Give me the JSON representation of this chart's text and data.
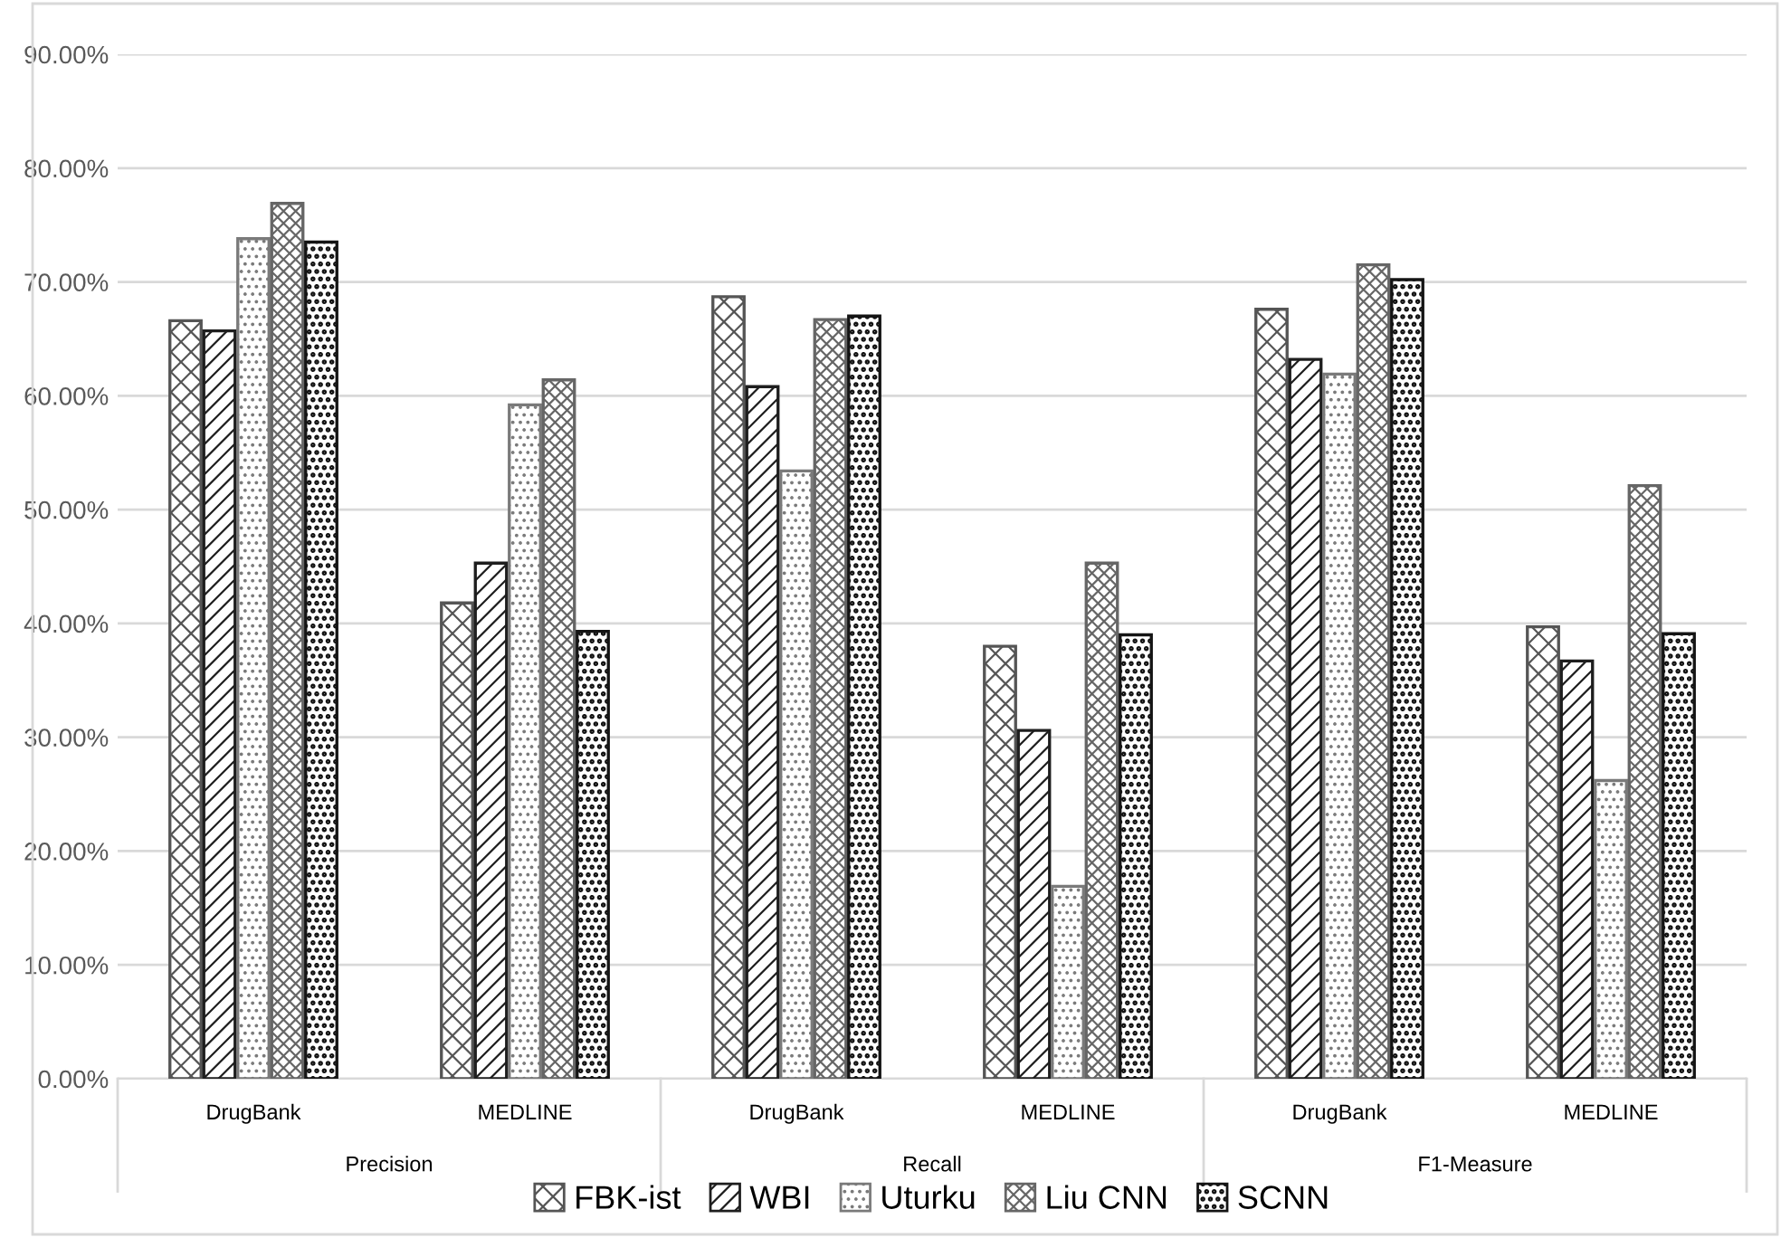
{
  "chart_data": {
    "type": "bar",
    "categories": [
      "DrugBank",
      "MEDLINE",
      "DrugBank",
      "MEDLINE",
      "DrugBank",
      "MEDLINE"
    ],
    "annotations": [
      "Precision",
      "Recall",
      "F1-Measure"
    ],
    "series": [
      {
        "name": "FBK-ist",
        "color": "#555555",
        "values": [
          66.6,
          41.8,
          68.7,
          38.0,
          67.6,
          39.7
        ]
      },
      {
        "name": "WBI",
        "color": "#1e1e1e",
        "values": [
          65.7,
          45.3,
          60.8,
          30.6,
          63.2,
          36.7
        ]
      },
      {
        "name": "Uturku",
        "color": "#7a7a7a",
        "values": [
          73.8,
          59.2,
          53.4,
          16.9,
          61.9,
          26.2
        ]
      },
      {
        "name": "Liu CNN",
        "color": "#666666",
        "values": [
          76.9,
          61.4,
          66.7,
          45.3,
          71.5,
          52.1
        ]
      },
      {
        "name": "SCNN",
        "color": "#141414",
        "values": [
          73.5,
          39.3,
          67.0,
          39.0,
          70.2,
          39.1
        ]
      }
    ],
    "ylim": [
      0,
      90
    ],
    "yticks": [
      {
        "value": 0,
        "label": "0.00%"
      },
      {
        "value": 10,
        "label": "10.00%"
      },
      {
        "value": 20,
        "label": "20.00%"
      },
      {
        "value": 30,
        "label": "30.00%"
      },
      {
        "value": 40,
        "label": "40.00%"
      },
      {
        "value": 50,
        "label": "50.00%"
      },
      {
        "value": 60,
        "label": "60.00%"
      },
      {
        "value": 70,
        "label": "70.00%"
      },
      {
        "value": 80,
        "label": "80.00%"
      },
      {
        "value": 90,
        "label": "90.00%"
      }
    ],
    "grid": "y",
    "legend": "bottom"
  }
}
